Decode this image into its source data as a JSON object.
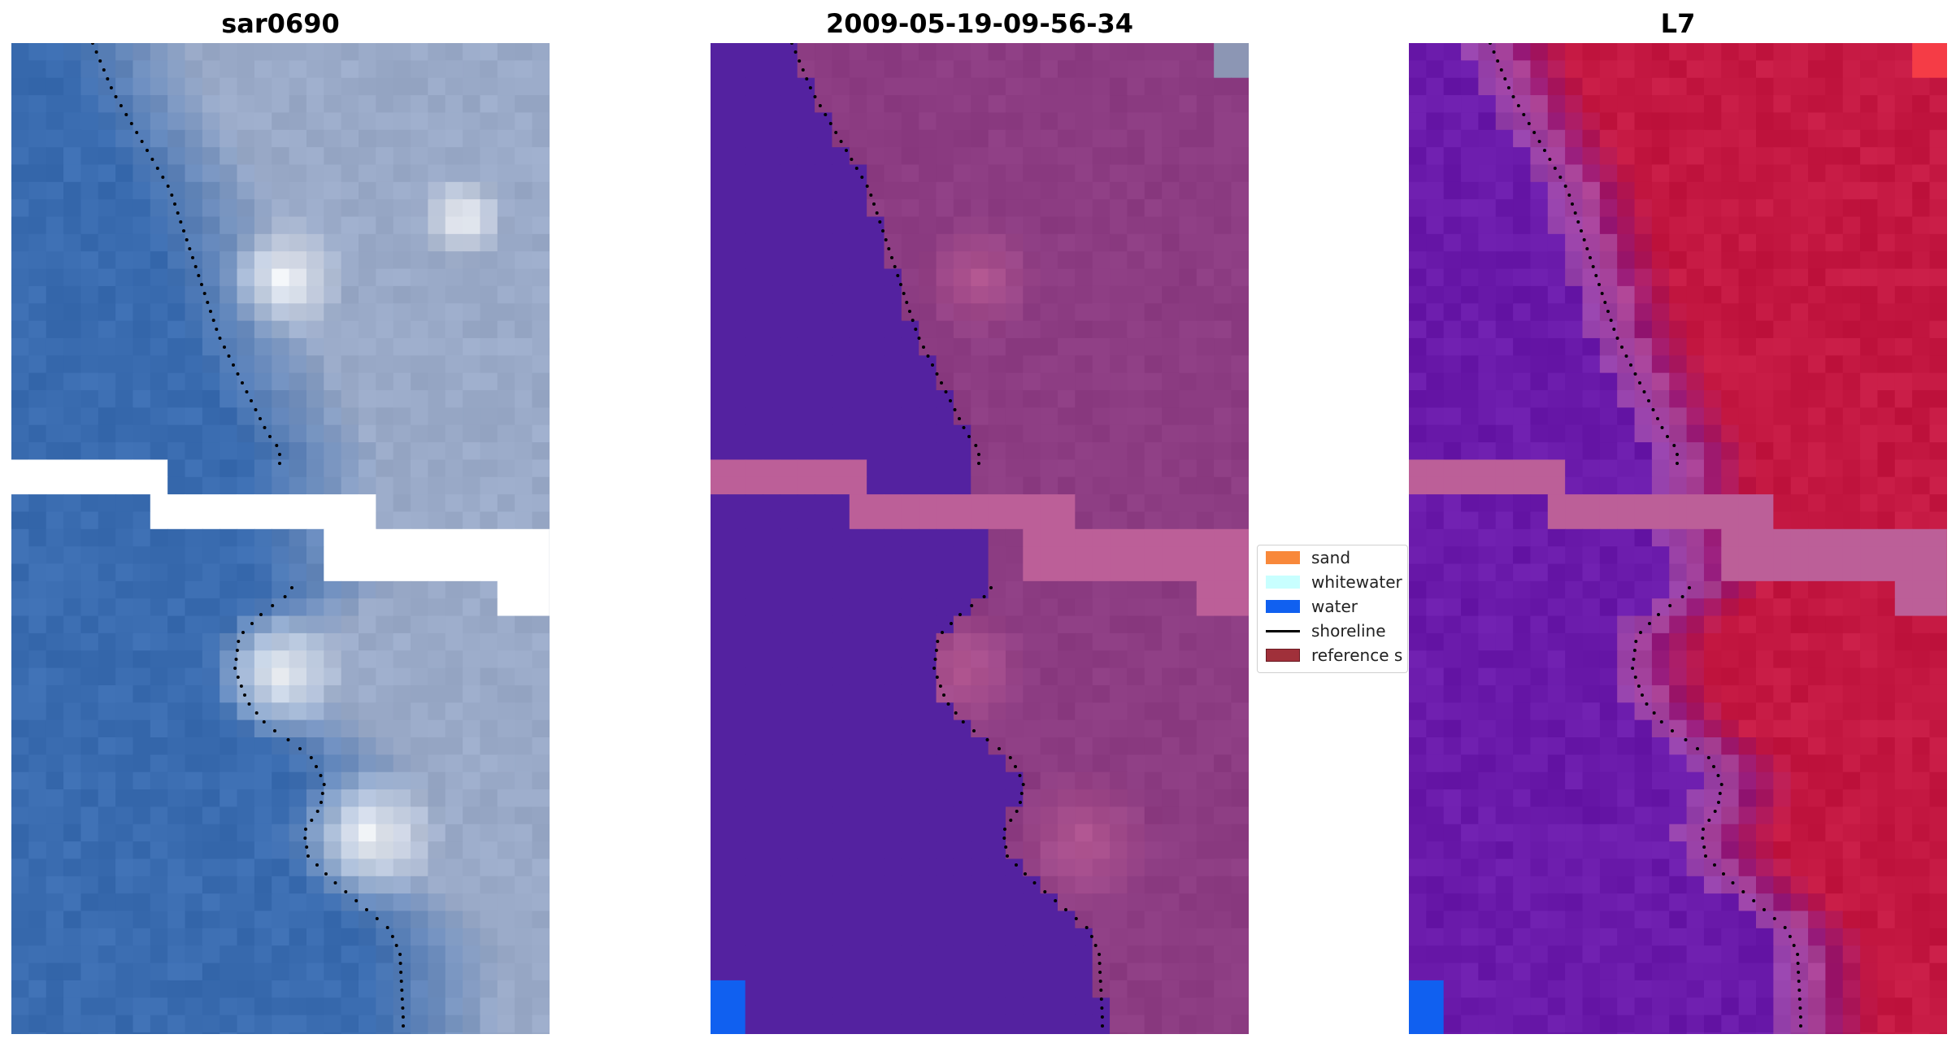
{
  "panels": [
    {
      "title": "sar0690",
      "kind": "rgb"
    },
    {
      "title": "2009-05-19-09-56-34",
      "kind": "classified"
    },
    {
      "title": "L7",
      "kind": "mndwi"
    }
  ],
  "legend": {
    "items": [
      {
        "label": "sand",
        "color": "#f8883a",
        "type": "patch"
      },
      {
        "label": "whitewater",
        "color": "#c8ffff",
        "type": "patch"
      },
      {
        "label": "water",
        "color": "#1060f0",
        "type": "patch"
      },
      {
        "label": "shoreline",
        "color": "#000000",
        "type": "line"
      },
      {
        "label": "reference s",
        "color": "#a0303a",
        "type": "patch"
      }
    ]
  },
  "colors": {
    "rgb_water": "#3a6cb0",
    "rgb_land": "#9aaac8",
    "class_water": "#5422a0",
    "class_land": "#8c3c82",
    "nodata_stripe": "#bc5f98",
    "mndwi_water": "#6a1aaa",
    "mndwi_land": "#c41842",
    "nodata_white": "#ffffff",
    "shoreline": "#000000",
    "water_blue": "#1060f0"
  }
}
